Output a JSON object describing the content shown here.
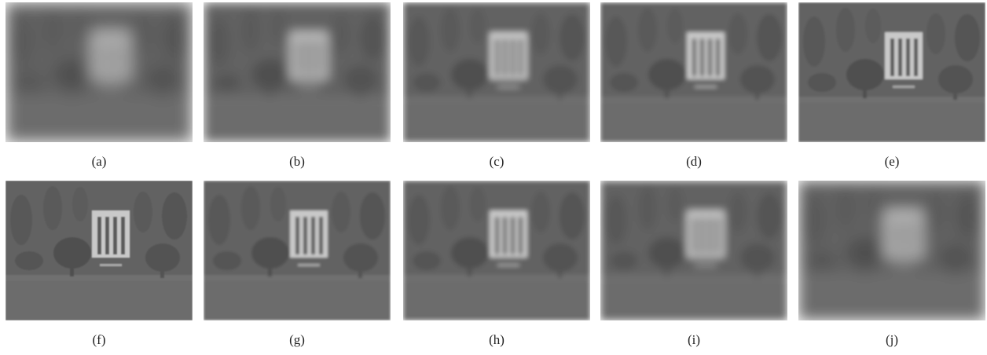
{
  "figure": {
    "captions": [
      "(a)",
      "(b)",
      "(c)",
      "(d)",
      "(e)",
      "(f)",
      "(g)",
      "(h)",
      "(i)",
      "(j)"
    ]
  }
}
